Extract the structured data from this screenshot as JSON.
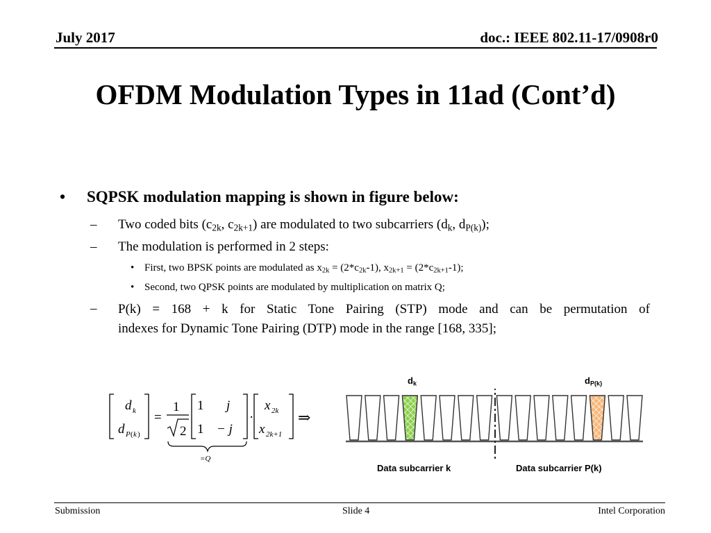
{
  "header": {
    "date": "July 2017",
    "doc": "doc.: IEEE 802.11-17/0908r0"
  },
  "title": "OFDM Modulation Types in 11ad (Cont’d)",
  "bullet": {
    "text": "SQPSK modulation mapping is shown in figure below:",
    "sub1": {
      "a": "Two coded bits (c",
      "b": "2k",
      "c": ", c",
      "d": "2k+1",
      "e": ") are modulated to two subcarriers (d",
      "f": "k",
      "g": ", d",
      "h": "P(k)",
      "i": ");"
    },
    "sub2": "The modulation is performed in 2 steps:",
    "sub2_items": {
      "first": {
        "a": "First, two BPSK points are modulated as x",
        "b": "2k",
        "c": " = (2*c",
        "d": "2k",
        "e": "-1), x",
        "f": "2k+1",
        "g": " = (2*c",
        "h": "2k+1",
        "i": "-1);"
      },
      "second": "Second, two QPSK points are modulated by multiplication on matrix Q;"
    },
    "sub3": {
      "line1": "P(k) = 168 + k for Static Tone Pairing (STP) mode and can be permutation of",
      "line2": "indexes for Dynamic Tone Pairing (DTP) mode in the range [168, 335];"
    }
  },
  "equation": {
    "d": "d",
    "k": "k",
    "P": "P",
    "one": "1",
    "two": "2",
    "j": "j",
    "minus_j": "− j",
    "x": "x",
    "x2k": "2k",
    "x2k1": "2k+1",
    "eq": "=",
    "dot": "·",
    "implies": "⇒",
    "eqQ": "=Q"
  },
  "figure": {
    "label_dk": "d",
    "label_dk_sub": "k",
    "label_dpk": "d",
    "label_dpk_sub": "P(k)",
    "caption_left": "Data subcarrier k",
    "caption_right": "Data subcarrier P(k)",
    "highlight_green": "#8ed14f",
    "highlight_orange": "#f7b77a"
  },
  "footer": {
    "left": "Submission",
    "center": "Slide 4",
    "right": "Intel Corporation"
  }
}
